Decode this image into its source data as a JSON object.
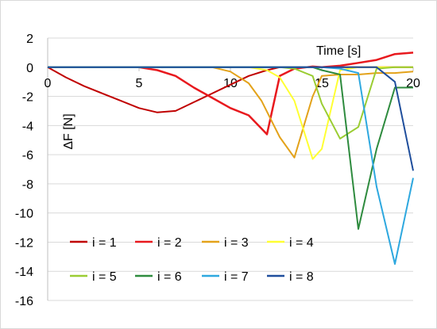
{
  "chart_data": {
    "type": "line",
    "xlabel": "Time [s]",
    "ylabel": "ΔF [N]",
    "xlim": [
      0,
      20
    ],
    "ylim": [
      -16,
      2
    ],
    "xticks": [
      0,
      5,
      10,
      15,
      20
    ],
    "yticks": [
      2,
      0,
      -2,
      -4,
      -6,
      -8,
      -10,
      -12,
      -14,
      -16
    ],
    "grid": "horizontal",
    "legend_position": "bottom-left",
    "series": [
      {
        "name": "i = 1",
        "color": "#c00000",
        "x": [
          0,
          1,
          2,
          3,
          4,
          5,
          6,
          7,
          8,
          9,
          10,
          11,
          12,
          12.7,
          13.5,
          14.5,
          15,
          16,
          17,
          18,
          19,
          20
        ],
        "y": [
          0,
          -0.7,
          -1.3,
          -1.8,
          -2.3,
          -2.8,
          -3.1,
          -3.0,
          -2.4,
          -1.8,
          -1.2,
          -0.6,
          -0.2,
          0,
          0,
          0,
          0,
          0,
          0,
          0,
          0,
          0
        ]
      },
      {
        "name": "i = 2",
        "color": "#e8191e",
        "x": [
          0,
          4,
          5,
          6,
          7,
          8,
          9,
          10,
          11,
          12,
          12.7,
          13.5,
          14.5,
          15,
          16,
          17,
          18,
          19,
          20
        ],
        "y": [
          0,
          0,
          0,
          -0.2,
          -0.6,
          -1.4,
          -2.1,
          -2.8,
          -3.3,
          -4.6,
          -0.6,
          -0.1,
          0.05,
          0,
          0.1,
          0.3,
          0.5,
          0.9,
          1.0
        ]
      },
      {
        "name": "i = 3",
        "color": "#e3a21a",
        "x": [
          0,
          9,
          10,
          11,
          11.7,
          12.7,
          13.5,
          14.5,
          15,
          16,
          17,
          18,
          19,
          20
        ],
        "y": [
          0,
          0,
          -0.3,
          -1.1,
          -2.3,
          -4.8,
          -6.2,
          -2.0,
          -0.6,
          -0.5,
          -0.5,
          -0.4,
          -0.4,
          -0.3
        ]
      },
      {
        "name": "i = 4",
        "color": "#ffff33",
        "x": [
          0,
          11,
          12,
          12.7,
          13.5,
          14.5,
          15,
          16,
          17,
          18,
          19,
          20
        ],
        "y": [
          0,
          0,
          -0.2,
          -0.7,
          -2.3,
          -6.3,
          -5.6,
          -0.2,
          0,
          0,
          0,
          0
        ]
      },
      {
        "name": "i = 5",
        "color": "#9acd32",
        "x": [
          0,
          12.7,
          13.5,
          14.5,
          15,
          16,
          17,
          18,
          19,
          20
        ],
        "y": [
          0,
          0,
          -0.1,
          -0.6,
          -2.5,
          -4.9,
          -4.1,
          -0.1,
          0,
          0
        ]
      },
      {
        "name": "i = 6",
        "color": "#2e8b3e",
        "x": [
          0,
          14.5,
          15,
          16,
          17,
          18,
          19,
          20
        ],
        "y": [
          0,
          0,
          -0.2,
          -0.5,
          -11.1,
          -5.6,
          -1.4,
          -1.4
        ]
      },
      {
        "name": "i = 7",
        "color": "#2ea8df",
        "x": [
          0,
          15,
          16,
          17,
          18,
          19,
          20
        ],
        "y": [
          0,
          0,
          -0.1,
          -0.4,
          -8.2,
          -13.5,
          -7.6
        ]
      },
      {
        "name": "i = 8",
        "color": "#1f4e9c",
        "x": [
          0,
          16,
          17,
          18,
          19,
          20
        ],
        "y": [
          0,
          0,
          0,
          0,
          -1.0,
          -7.1
        ]
      }
    ]
  }
}
